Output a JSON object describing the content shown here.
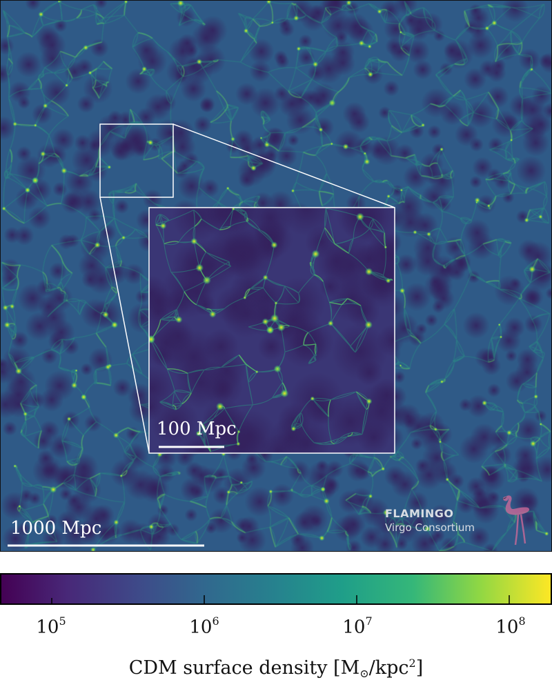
{
  "image": {
    "description_type": "cosmological simulation slice",
    "colormap": "viridis",
    "colors": {
      "void": "#3b2f6e",
      "mid": "#2d6f8e",
      "filament": "#27a882",
      "node": "#f5e51f",
      "frame": "#ffffff"
    }
  },
  "scale_bars": {
    "main_label": "1000 Mpc",
    "zoom_label": "100 Mpc"
  },
  "credit": {
    "title": "FLAMINGO",
    "subtitle": "Virgo Consortium",
    "logo_icon": "flamingo-icon"
  },
  "colorbar": {
    "scale": "log",
    "tick_base": "10",
    "ticks": [
      {
        "exponent": "5"
      },
      {
        "exponent": "6"
      },
      {
        "exponent": "7"
      },
      {
        "exponent": "8"
      }
    ],
    "label_main": "CDM surface density [M",
    "label_sub": "⊙",
    "label_mid": "/kpc",
    "label_sup": "2",
    "label_end": "]"
  }
}
